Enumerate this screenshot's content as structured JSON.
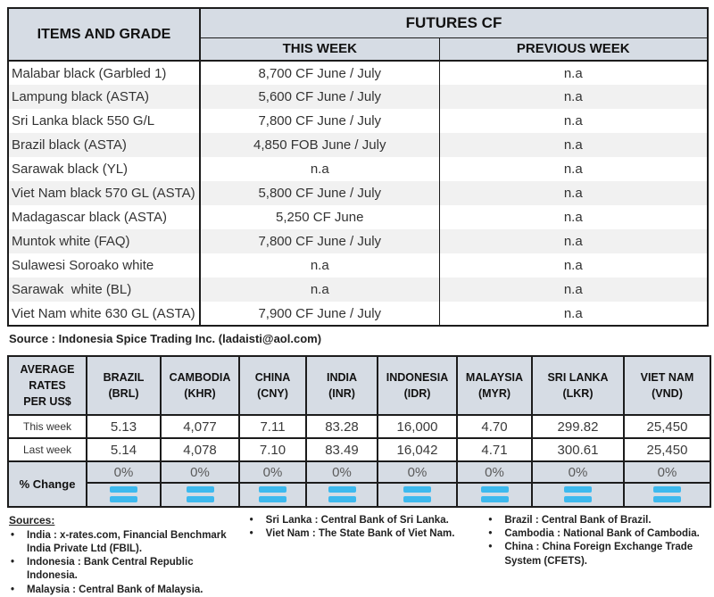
{
  "futures_table": {
    "header": {
      "items_and_grade": "ITEMS AND GRADE",
      "futures_cf": "FUTURES CF",
      "this_week": "THIS WEEK",
      "previous_week": "PREVIOUS WEEK"
    },
    "rows": [
      {
        "item": "Malabar black (Garbled 1)",
        "this_week": "8,700 CF June / July",
        "previous_week": "n.a"
      },
      {
        "item": "Lampung black (ASTA)",
        "this_week": "5,600 CF June / July",
        "previous_week": "n.a"
      },
      {
        "item": "Sri Lanka black 550 G/L",
        "this_week": "7,800 CF June / July",
        "previous_week": "n.a"
      },
      {
        "item": "Brazil black (ASTA)",
        "this_week": "4,850 FOB June / July",
        "previous_week": "n.a"
      },
      {
        "item": "Sarawak black (YL)",
        "this_week": "n.a",
        "previous_week": "n.a"
      },
      {
        "item": "Viet Nam black 570 GL (ASTA)",
        "this_week": "5,800 CF June / July",
        "previous_week": "n.a"
      },
      {
        "item": "Madagascar black (ASTA)",
        "this_week": "5,250 CF June",
        "previous_week": "n.a"
      },
      {
        "item": "Muntok white (FAQ)",
        "this_week": "7,800 CF June / July",
        "previous_week": "n.a"
      },
      {
        "item": "Sulawesi Soroako white",
        "this_week": "n.a",
        "previous_week": "n.a"
      },
      {
        "item": "Sarawak  white (BL)",
        "this_week": "n.a",
        "previous_week": "n.a"
      },
      {
        "item": "Viet Nam white 630 GL (ASTA)",
        "this_week": "7,900 CF June / July",
        "previous_week": "n.a"
      }
    ]
  },
  "source_line": "Source : Indonesia Spice Trading Inc. (ladaisti@aol.com)",
  "rates_table": {
    "corner_label": "AVERAGE\nRATES\nPER US$",
    "columns": [
      {
        "country": "BRAZIL",
        "code": "(BRL)"
      },
      {
        "country": "CAMBODIA",
        "code": "(KHR)"
      },
      {
        "country": "CHINA",
        "code": "(CNY)"
      },
      {
        "country": "INDIA",
        "code": "(INR)"
      },
      {
        "country": "INDONESIA",
        "code": "(IDR)"
      },
      {
        "country": "MALAYSIA",
        "code": "(MYR)"
      },
      {
        "country": "SRI LANKA",
        "code": "(LKR)"
      },
      {
        "country": "VIET NAM",
        "code": "(VND)"
      }
    ],
    "rows": [
      {
        "label": "This week",
        "values": [
          "5.13",
          "4,077",
          "7.11",
          "83.28",
          "16,000",
          "4.70",
          "299.82",
          "25,450"
        ]
      },
      {
        "label": "Last week",
        "values": [
          "5.14",
          "4,078",
          "7.10",
          "83.49",
          "16,042",
          "4.71",
          "300.61",
          "25,450"
        ]
      }
    ],
    "percent_change": {
      "label": "% Change",
      "values": [
        "0%",
        "0%",
        "0%",
        "0%",
        "0%",
        "0%",
        "0%",
        "0%"
      ],
      "icon": "equals-icon"
    }
  },
  "sources": {
    "heading": "Sources:",
    "columns": [
      [
        "India : x-rates.com, Financial Benchmark India Private Ltd (FBIL).",
        "Indonesia : Bank Central Republic Indonesia.",
        "Malaysia : Central Bank of Malaysia."
      ],
      [
        "Sri Lanka : Central Bank of Sri Lanka.",
        "Viet Nam : The State Bank of Viet Nam."
      ],
      [
        "Brazil :  Central Bank of Brazil.",
        "Cambodia : National Bank of Cambodia.",
        "China : China Foreign Exchange Trade System (CFETS)."
      ]
    ]
  },
  "colors": {
    "header_bg": "#d6dce4",
    "row_alt": "#f1f1f1",
    "border": "#1c1c1c",
    "equals_blue": "#3db9ee",
    "pct_text": "#5a5a5a"
  }
}
